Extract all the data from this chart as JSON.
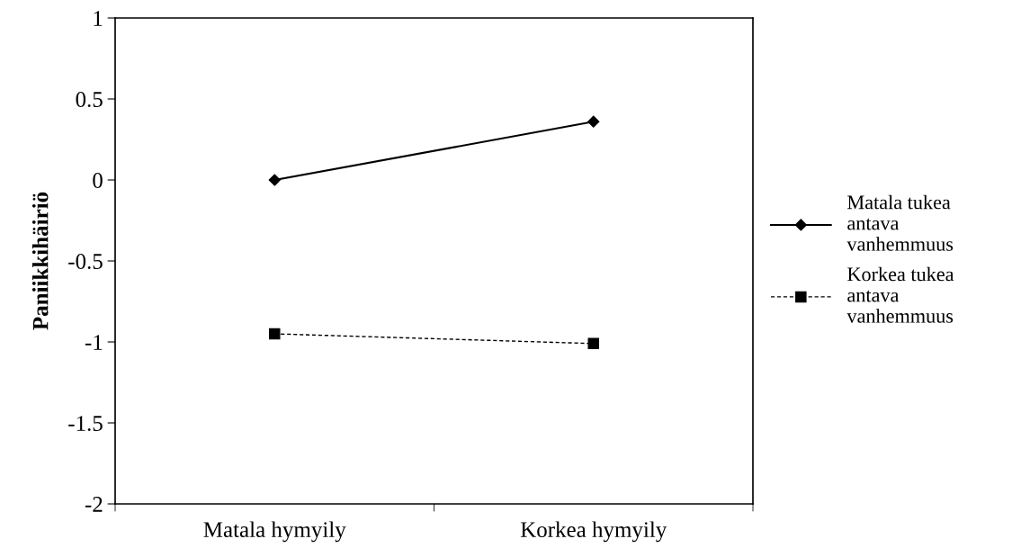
{
  "chart_data": {
    "type": "line",
    "ylabel": "Paniikkihäiriö",
    "categories": [
      "Matala hymyily",
      "Korkea hymyily"
    ],
    "series": [
      {
        "name": "Matala tukea\nantava\nvanhemmuus",
        "color": "#000000",
        "values": [
          0,
          0.36
        ],
        "marker": "diamond",
        "line_style": "solid"
      },
      {
        "name": "Korkea tukea\nantava\nvanhemmuus",
        "color": "#000000",
        "values": [
          -0.95,
          -1.01
        ],
        "marker": "square",
        "line_style": "dashed"
      }
    ],
    "ylim": [
      -2,
      1
    ],
    "yticks": [
      -2,
      -1.5,
      -1,
      -0.5,
      0,
      0.5,
      1
    ],
    "grid": false,
    "legend": "right"
  }
}
